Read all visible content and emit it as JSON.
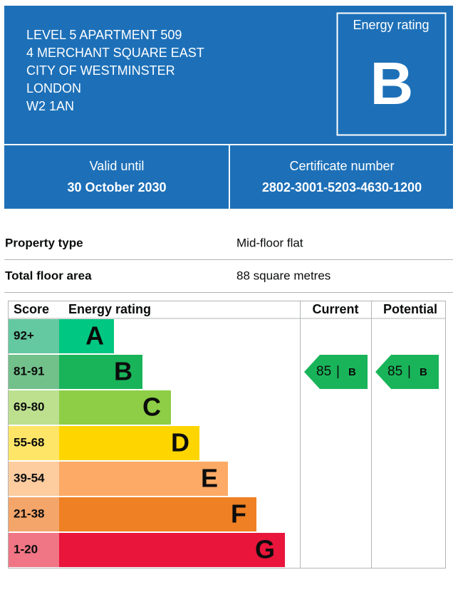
{
  "header": {
    "address": [
      "LEVEL 5 APARTMENT 509",
      "4 MERCHANT SQUARE EAST",
      "CITY OF WESTMINSTER",
      "LONDON",
      "W2 1AN"
    ],
    "rating_label": "Energy rating",
    "rating": "B"
  },
  "validity": {
    "label": "Valid until",
    "value": "30 October 2030"
  },
  "certificate": {
    "label": "Certificate number",
    "value": "2802-3001-5203-4630-1200"
  },
  "summary": [
    [
      "Property type",
      "Mid-floor flat"
    ],
    [
      "Total floor area",
      "88 square metres"
    ]
  ],
  "chart": {
    "headers": [
      "Score",
      "Energy rating",
      "Current",
      "Potential"
    ],
    "bands": [
      {
        "score": "92+",
        "letter": "A"
      },
      {
        "score": "81-91",
        "letter": "B"
      },
      {
        "score": "69-80",
        "letter": "C"
      },
      {
        "score": "55-68",
        "letter": "D"
      },
      {
        "score": "39-54",
        "letter": "E"
      },
      {
        "score": "21-38",
        "letter": "F"
      },
      {
        "score": "1-20",
        "letter": "G"
      }
    ],
    "current": {
      "value": 85,
      "separator": "|",
      "letter": "B"
    },
    "potential": {
      "value": 85,
      "separator": "|",
      "letter": "B"
    }
  }
}
